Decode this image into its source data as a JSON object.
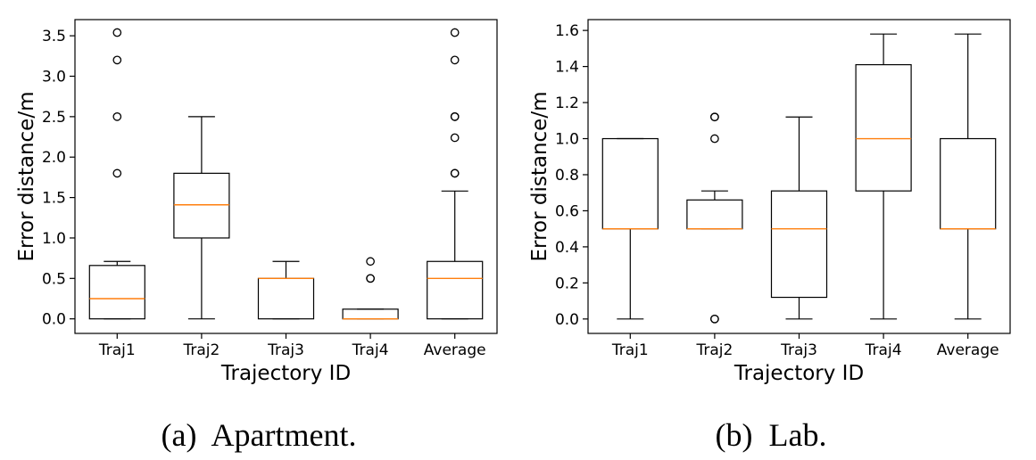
{
  "chart_data": [
    {
      "type": "box",
      "caption": "(a)  Apartment.",
      "xlabel": "Trajectory ID",
      "ylabel": "Error distance/m",
      "ylim": [
        -0.18,
        3.7
      ],
      "yticks": [
        0.0,
        0.5,
        1.0,
        1.5,
        2.0,
        2.5,
        3.0,
        3.5
      ],
      "ytick_labels": [
        "0.0",
        "0.5",
        "1.0",
        "1.5",
        "2.0",
        "2.5",
        "3.0",
        "3.5"
      ],
      "categories": [
        "Traj1",
        "Traj2",
        "Traj3",
        "Traj4",
        "Average"
      ],
      "boxes": [
        {
          "whisker_low": 0.0,
          "q1": 0.0,
          "median": 0.25,
          "q3": 0.66,
          "whisker_high": 0.71,
          "outliers": [
            1.8,
            2.5,
            3.2,
            3.54
          ]
        },
        {
          "whisker_low": 0.0,
          "q1": 1.0,
          "median": 1.41,
          "q3": 1.8,
          "whisker_high": 2.5,
          "outliers": []
        },
        {
          "whisker_low": 0.0,
          "q1": 0.0,
          "median": 0.5,
          "q3": 0.5,
          "whisker_high": 0.71,
          "outliers": []
        },
        {
          "whisker_low": 0.0,
          "q1": 0.0,
          "median": 0.0,
          "q3": 0.12,
          "whisker_high": 0.12,
          "outliers": [
            0.5,
            0.5,
            0.71
          ]
        },
        {
          "whisker_low": 0.0,
          "q1": 0.0,
          "median": 0.5,
          "q3": 0.71,
          "whisker_high": 1.58,
          "outliers": [
            1.8,
            1.8,
            2.24,
            2.5,
            2.5,
            3.2,
            3.54
          ]
        }
      ]
    },
    {
      "type": "box",
      "caption": "(b)  Lab.",
      "xlabel": "Trajectory ID",
      "ylabel": "Error distance/m",
      "ylim": [
        -0.08,
        1.66
      ],
      "yticks": [
        0.0,
        0.2,
        0.4,
        0.6,
        0.8,
        1.0,
        1.2,
        1.4,
        1.6
      ],
      "ytick_labels": [
        "0.0",
        "0.2",
        "0.4",
        "0.6",
        "0.8",
        "1.0",
        "1.2",
        "1.4",
        "1.6"
      ],
      "categories": [
        "Traj1",
        "Traj2",
        "Traj3",
        "Traj4",
        "Average"
      ],
      "boxes": [
        {
          "whisker_low": 0.0,
          "q1": 0.5,
          "median": 0.5,
          "q3": 1.0,
          "whisker_high": 1.0,
          "outliers": []
        },
        {
          "whisker_low": 0.5,
          "q1": 0.5,
          "median": 0.5,
          "q3": 0.66,
          "whisker_high": 0.71,
          "outliers": [
            0.0,
            0.0,
            1.0,
            1.12,
            1.12
          ]
        },
        {
          "whisker_low": 0.0,
          "q1": 0.12,
          "median": 0.5,
          "q3": 0.71,
          "whisker_high": 1.12,
          "outliers": []
        },
        {
          "whisker_low": 0.0,
          "q1": 0.71,
          "median": 1.0,
          "q3": 1.41,
          "whisker_high": 1.58,
          "outliers": []
        },
        {
          "whisker_low": 0.0,
          "q1": 0.5,
          "median": 0.5,
          "q3": 1.0,
          "whisker_high": 1.58,
          "outliers": []
        }
      ]
    }
  ],
  "colors": {
    "median": "#ff7f0e",
    "box": "#000000"
  }
}
